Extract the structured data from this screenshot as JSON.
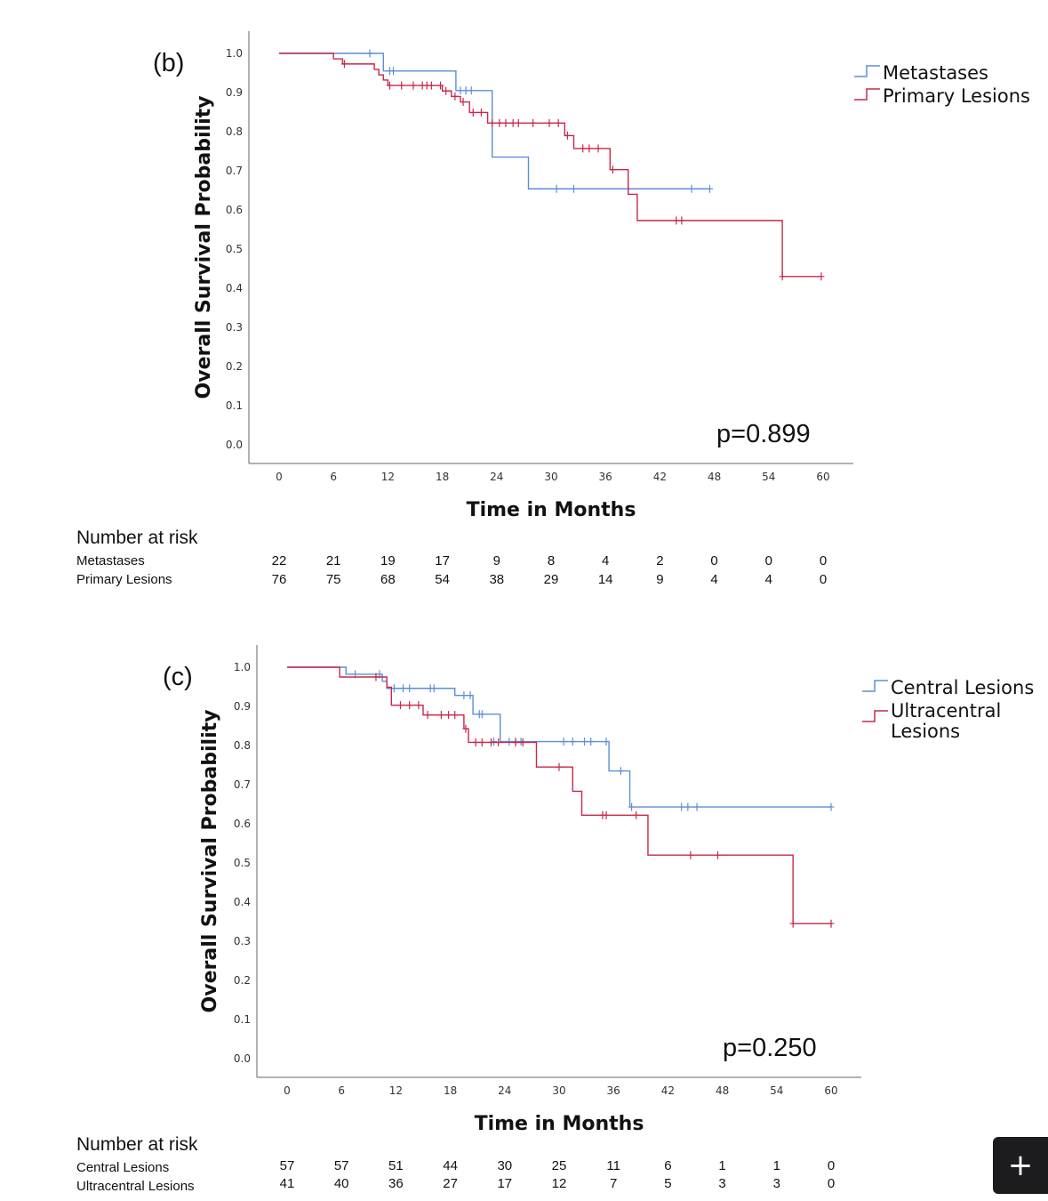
{
  "chart_data": [
    {
      "type": "line",
      "panel_label": "(b)",
      "ylabel": "Overall Survival Probability",
      "xlabel": "Time in Months",
      "ylim": [
        0,
        1
      ],
      "xlim": [
        0,
        60
      ],
      "yticks": [
        "0.0",
        "0.1",
        "0.2",
        "0.3",
        "0.4",
        "0.5",
        "0.6",
        "0.7",
        "0.8",
        "0.9",
        "1.0"
      ],
      "xticks": [
        "0",
        "6",
        "12",
        "18",
        "24",
        "30",
        "36",
        "42",
        "48",
        "54",
        "60"
      ],
      "annotation": "p=0.899",
      "legend_position": "top-right",
      "series": [
        {
          "name": "Metastases",
          "color": "#5b8fd8",
          "steps": [
            [
              0,
              1.0
            ],
            [
              11.5,
              0.955
            ],
            [
              19.5,
              0.905
            ],
            [
              23.5,
              0.735
            ],
            [
              27.5,
              0.654
            ]
          ],
          "end_time": 47.5,
          "censors": [
            [
              10,
              1.0
            ],
            [
              12.2,
              0.955
            ],
            [
              12.6,
              0.955
            ],
            [
              20.0,
              0.905
            ],
            [
              20.6,
              0.905
            ],
            [
              21.2,
              0.905
            ],
            [
              30.6,
              0.654
            ],
            [
              32.5,
              0.654
            ],
            [
              38.5,
              0.654
            ],
            [
              45.5,
              0.654
            ],
            [
              47.5,
              0.654
            ]
          ]
        },
        {
          "name": "Primary Lesions",
          "color": "#c8284a",
          "steps": [
            [
              0,
              1.0
            ],
            [
              6,
              0.986
            ],
            [
              7,
              0.973
            ],
            [
              10.5,
              0.959
            ],
            [
              11.0,
              0.945
            ],
            [
              11.5,
              0.932
            ],
            [
              12.0,
              0.918
            ],
            [
              18.0,
              0.904
            ],
            [
              19.0,
              0.89
            ],
            [
              20.0,
              0.876
            ],
            [
              21.0,
              0.849
            ],
            [
              23.0,
              0.822
            ],
            [
              31.5,
              0.79
            ],
            [
              32.5,
              0.757
            ],
            [
              36.5,
              0.703
            ],
            [
              38.5,
              0.64
            ],
            [
              39.5,
              0.573
            ],
            [
              55.5,
              0.43
            ]
          ],
          "end_time": 59.8,
          "censors": [
            [
              7.2,
              0.973
            ],
            [
              12.2,
              0.918
            ],
            [
              13.5,
              0.918
            ],
            [
              14.8,
              0.918
            ],
            [
              15.8,
              0.918
            ],
            [
              16.3,
              0.918
            ],
            [
              16.8,
              0.918
            ],
            [
              17.8,
              0.918
            ],
            [
              18.4,
              0.904
            ],
            [
              19.4,
              0.89
            ],
            [
              20.3,
              0.876
            ],
            [
              21.4,
              0.849
            ],
            [
              22.3,
              0.849
            ],
            [
              23.5,
              0.822
            ],
            [
              24.3,
              0.822
            ],
            [
              25.0,
              0.822
            ],
            [
              25.8,
              0.822
            ],
            [
              26.4,
              0.822
            ],
            [
              28.0,
              0.822
            ],
            [
              29.8,
              0.822
            ],
            [
              30.8,
              0.822
            ],
            [
              31.8,
              0.79
            ],
            [
              33.5,
              0.757
            ],
            [
              34.2,
              0.757
            ],
            [
              35.2,
              0.757
            ],
            [
              36.8,
              0.703
            ],
            [
              43.8,
              0.573
            ],
            [
              44.4,
              0.573
            ],
            [
              55.5,
              0.43
            ],
            [
              59.8,
              0.43
            ]
          ]
        }
      ],
      "risk_table": {
        "title": "Number at risk",
        "rows": [
          {
            "label": "Metastases",
            "values": [
              "22",
              "21",
              "19",
              "17",
              "9",
              "8",
              "4",
              "2",
              "0",
              "0",
              "0"
            ]
          },
          {
            "label": "Primary Lesions",
            "values": [
              "76",
              "75",
              "68",
              "54",
              "38",
              "29",
              "14",
              "9",
              "4",
              "4",
              "0"
            ]
          }
        ]
      }
    },
    {
      "type": "line",
      "panel_label": "(c)",
      "ylabel": "Overall Survival Probability",
      "xlabel": "Time in Months",
      "ylim": [
        0,
        1
      ],
      "xlim": [
        0,
        60
      ],
      "yticks": [
        "0.0",
        "0.1",
        "0.2",
        "0.3",
        "0.4",
        "0.5",
        "0.6",
        "0.7",
        "0.8",
        "0.9",
        "1.0"
      ],
      "xticks": [
        "0",
        "6",
        "12",
        "18",
        "24",
        "30",
        "36",
        "42",
        "48",
        "54",
        "60"
      ],
      "annotation": "p=0.250",
      "legend_position": "top-right",
      "series": [
        {
          "name": "Central Lesions",
          "color": "#5b8fd8",
          "steps": [
            [
              0,
              1.0
            ],
            [
              6.5,
              0.982
            ],
            [
              10.5,
              0.964
            ],
            [
              11.0,
              0.946
            ],
            [
              18.5,
              0.928
            ],
            [
              20.5,
              0.88
            ],
            [
              23.5,
              0.81
            ],
            [
              35.5,
              0.735
            ],
            [
              37.8,
              0.643
            ]
          ],
          "end_time": 60,
          "censors": [
            [
              7.5,
              0.982
            ],
            [
              10.2,
              0.982
            ],
            [
              11.8,
              0.946
            ],
            [
              12.8,
              0.946
            ],
            [
              13.5,
              0.946
            ],
            [
              15.8,
              0.946
            ],
            [
              16.2,
              0.946
            ],
            [
              19.5,
              0.928
            ],
            [
              20.2,
              0.928
            ],
            [
              21.2,
              0.88
            ],
            [
              21.5,
              0.88
            ],
            [
              22.8,
              0.81
            ],
            [
              24.5,
              0.81
            ],
            [
              25.2,
              0.81
            ],
            [
              25.8,
              0.81
            ],
            [
              30.5,
              0.81
            ],
            [
              31.5,
              0.81
            ],
            [
              32.8,
              0.81
            ],
            [
              33.5,
              0.81
            ],
            [
              35.2,
              0.81
            ],
            [
              36.8,
              0.735
            ],
            [
              38.0,
              0.643
            ],
            [
              43.5,
              0.643
            ],
            [
              44.2,
              0.643
            ],
            [
              45.2,
              0.643
            ],
            [
              60.0,
              0.643
            ]
          ]
        },
        {
          "name": "Ultracentral Lesions",
          "color": "#c8284a",
          "steps": [
            [
              0,
              1.0
            ],
            [
              5.8,
              0.975
            ],
            [
              11.0,
              0.949
            ],
            [
              11.5,
              0.903
            ],
            [
              15.0,
              0.878
            ],
            [
              19.5,
              0.843
            ],
            [
              20.0,
              0.808
            ],
            [
              27.5,
              0.745
            ],
            [
              31.5,
              0.683
            ],
            [
              32.5,
              0.622
            ],
            [
              39.8,
              0.52
            ],
            [
              55.8,
              0.345
            ]
          ],
          "end_time": 60,
          "censors": [
            [
              9.8,
              0.975
            ],
            [
              12.5,
              0.903
            ],
            [
              13.5,
              0.903
            ],
            [
              14.5,
              0.903
            ],
            [
              15.5,
              0.878
            ],
            [
              17.0,
              0.878
            ],
            [
              17.8,
              0.878
            ],
            [
              18.5,
              0.878
            ],
            [
              19.7,
              0.843
            ],
            [
              20.8,
              0.808
            ],
            [
              21.5,
              0.808
            ],
            [
              22.5,
              0.808
            ],
            [
              23.3,
              0.808
            ],
            [
              25.2,
              0.808
            ],
            [
              26.0,
              0.808
            ],
            [
              30.0,
              0.745
            ],
            [
              34.8,
              0.622
            ],
            [
              35.2,
              0.622
            ],
            [
              38.5,
              0.622
            ],
            [
              44.5,
              0.52
            ],
            [
              47.5,
              0.52
            ],
            [
              55.8,
              0.345
            ],
            [
              60.0,
              0.345
            ]
          ]
        }
      ],
      "risk_table": {
        "title": "Number at risk",
        "rows": [
          {
            "label": "Central Lesions",
            "values": [
              "57",
              "57",
              "51",
              "44",
              "30",
              "25",
              "11",
              "6",
              "1",
              "1",
              "0"
            ]
          },
          {
            "label": "Ultracentral Lesions",
            "values": [
              "41",
              "40",
              "36",
              "27",
              "17",
              "12",
              "7",
              "5",
              "3",
              "3",
              "0"
            ]
          }
        ]
      }
    }
  ],
  "legend_b": {
    "label_1": "Metastases",
    "label_2": "Primary Lesions"
  },
  "legend_c": {
    "label_1": "Central Lesions",
    "label_2a": "Ultracentral",
    "label_2b": "Lesions"
  },
  "toolbar": {
    "add_icon": "plus-icon",
    "add_glyph": "+"
  }
}
